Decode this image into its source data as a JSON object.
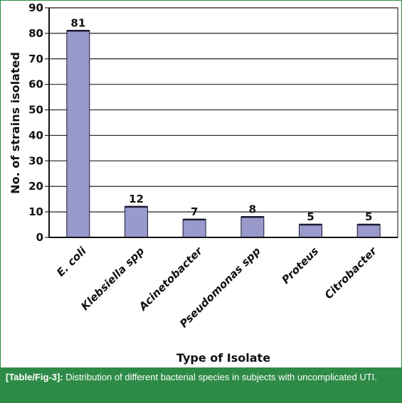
{
  "chart_data": {
    "type": "bar",
    "categories": [
      "E. coli",
      "Klebsiella spp",
      "Acinetobacter",
      "Pseudomonas spp",
      "Proteus",
      "Citrobacter"
    ],
    "values": [
      81,
      12,
      7,
      8,
      5,
      5
    ],
    "data_labels": [
      "81",
      "12",
      "7",
      "8",
      "5",
      "5"
    ],
    "yticks": [
      "0",
      "10",
      "20",
      "30",
      "40",
      "50",
      "60",
      "70",
      "80",
      "90"
    ],
    "ylim": [
      0,
      90
    ],
    "xlabel": "Type of Isolate",
    "ylabel": "No. of strains isolated",
    "grid": "horizontal",
    "bar_color": "#9999cc",
    "bar_edge_color": "#1a1a33"
  },
  "caption": {
    "label": "[Table/Fig-3]:",
    "text": " Distribution of different bacterial species in subjects with uncomplicated UTI."
  }
}
